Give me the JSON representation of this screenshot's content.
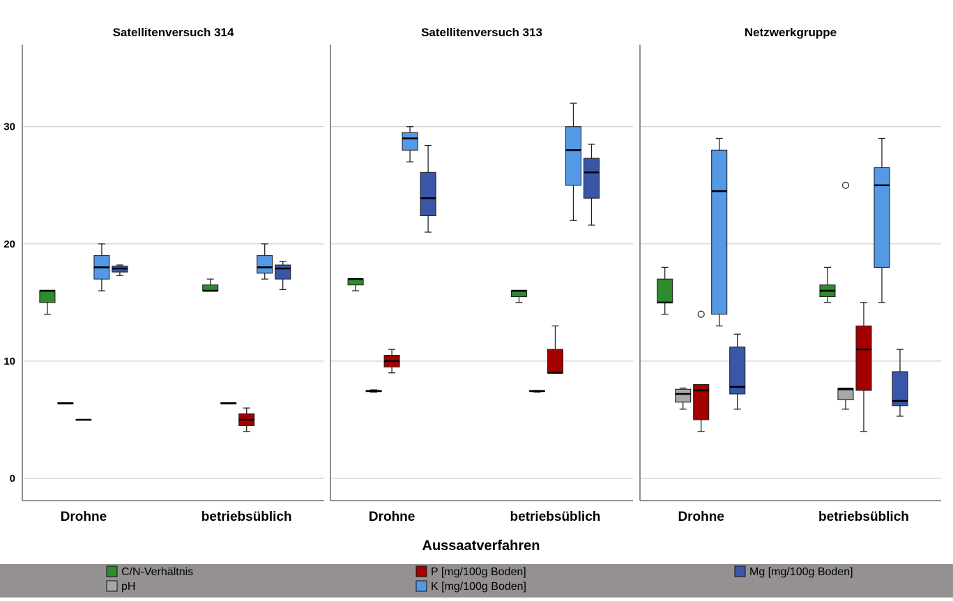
{
  "chart_data": {
    "type": "boxplot",
    "xlabel": "Aussaatverfahren",
    "ylim": [
      -1.9,
      37
    ],
    "yticks": [
      0,
      10,
      20,
      30
    ],
    "grid": true,
    "categories": [
      "Drohne",
      "betriebsüblich"
    ],
    "legend": {
      "placement": "bottom",
      "items": [
        {
          "key": "cn",
          "label": "C/N-Verhältnis",
          "color": "#2e8b2e"
        },
        {
          "key": "ph",
          "label": "pH",
          "color": "#a8a8a8"
        },
        {
          "key": "p",
          "label": "P [mg/100g Boden]",
          "color": "#a50000"
        },
        {
          "key": "k",
          "label": "K [mg/100g Boden]",
          "color": "#5599e6"
        },
        {
          "key": "mg",
          "label": "Mg [mg/100g Boden]",
          "color": "#3a56a8"
        }
      ]
    },
    "panels": [
      {
        "title": "Satellitenversuch 314",
        "groups": [
          {
            "category": "Drohne",
            "boxes": [
              {
                "series": "cn",
                "min": 14,
                "q1": 15,
                "median": 16,
                "q3": 16,
                "max": 16
              },
              {
                "series": "ph",
                "min": 6.35,
                "q1": 6.35,
                "median": 6.4,
                "q3": 6.45,
                "max": 6.45
              },
              {
                "series": "p",
                "min": 5,
                "q1": 5,
                "median": 5,
                "q3": 5,
                "max": 5
              },
              {
                "series": "k",
                "min": 16,
                "q1": 17,
                "median": 18,
                "q3": 19,
                "max": 20
              },
              {
                "series": "mg",
                "min": 17.3,
                "q1": 17.6,
                "median": 17.9,
                "q3": 18.1,
                "max": 18.2
              }
            ]
          },
          {
            "category": "betriebsüblich",
            "boxes": [
              {
                "series": "cn",
                "min": 16,
                "q1": 16,
                "median": 16,
                "q3": 16.5,
                "max": 17
              },
              {
                "series": "ph",
                "min": 6.35,
                "q1": 6.35,
                "median": 6.4,
                "q3": 6.45,
                "max": 6.45
              },
              {
                "series": "p",
                "min": 4,
                "q1": 4.5,
                "median": 5,
                "q3": 5.5,
                "max": 6
              },
              {
                "series": "k",
                "min": 17,
                "q1": 17.5,
                "median": 18,
                "q3": 19,
                "max": 20
              },
              {
                "series": "mg",
                "min": 16.1,
                "q1": 17,
                "median": 17.9,
                "q3": 18.2,
                "max": 18.5
              }
            ]
          }
        ]
      },
      {
        "title": "Satellitenversuch 313",
        "groups": [
          {
            "category": "Drohne",
            "boxes": [
              {
                "series": "cn",
                "min": 16,
                "q1": 16.5,
                "median": 17,
                "q3": 17,
                "max": 17
              },
              {
                "series": "ph",
                "min": 7.35,
                "q1": 7.4,
                "median": 7.45,
                "q3": 7.5,
                "max": 7.55
              },
              {
                "series": "p",
                "min": 9,
                "q1": 9.5,
                "median": 10,
                "q3": 10.5,
                "max": 11
              },
              {
                "series": "k",
                "min": 27,
                "q1": 28,
                "median": 29,
                "q3": 29.5,
                "max": 30
              },
              {
                "series": "mg",
                "min": 21,
                "q1": 22.4,
                "median": 23.9,
                "q3": 26.1,
                "max": 28.4
              }
            ]
          },
          {
            "category": "betriebsüblich",
            "boxes": [
              {
                "series": "cn",
                "min": 15,
                "q1": 15.5,
                "median": 16,
                "q3": 16,
                "max": 16
              },
              {
                "series": "ph",
                "min": 7.35,
                "q1": 7.4,
                "median": 7.45,
                "q3": 7.45,
                "max": 7.5
              },
              {
                "series": "p",
                "min": 9,
                "q1": 9,
                "median": 9,
                "q3": 11,
                "max": 13
              },
              {
                "series": "k",
                "min": 22,
                "q1": 25,
                "median": 28,
                "q3": 30,
                "max": 32
              },
              {
                "series": "mg",
                "min": 21.6,
                "q1": 23.9,
                "median": 26.1,
                "q3": 27.3,
                "max": 28.5
              }
            ]
          }
        ]
      },
      {
        "title": "Netzwerkgruppe",
        "groups": [
          {
            "category": "Drohne",
            "boxes": [
              {
                "series": "cn",
                "min": 14,
                "q1": 15,
                "median": 15,
                "q3": 17,
                "max": 18
              },
              {
                "series": "ph",
                "min": 5.9,
                "q1": 6.5,
                "median": 7.2,
                "q3": 7.6,
                "max": 7.7
              },
              {
                "series": "p",
                "min": 4,
                "q1": 5,
                "median": 7.5,
                "q3": 8,
                "max": 8
              },
              {
                "series": "k",
                "min": 13,
                "q1": 14,
                "median": 24.5,
                "q3": 28,
                "max": 29,
                "outliers": [
                  14
                ]
              },
              {
                "series": "mg",
                "min": 5.9,
                "q1": 7.2,
                "median": 7.8,
                "q3": 11.2,
                "max": 12.3
              }
            ]
          },
          {
            "category": "betriebsüblich",
            "boxes": [
              {
                "series": "cn",
                "min": 15,
                "q1": 15.5,
                "median": 16,
                "q3": 16.5,
                "max": 18
              },
              {
                "series": "ph",
                "min": 5.9,
                "q1": 6.7,
                "median": 7.6,
                "q3": 7.7,
                "max": 7.7
              },
              {
                "series": "p",
                "min": 4,
                "q1": 7.5,
                "median": 11,
                "q3": 13,
                "max": 15,
                "outliers": [
                  25
                ]
              },
              {
                "series": "k",
                "min": 15,
                "q1": 18,
                "median": 25,
                "q3": 26.5,
                "max": 29
              },
              {
                "series": "mg",
                "min": 5.3,
                "q1": 6.2,
                "median": 6.6,
                "q3": 9.1,
                "max": 11
              }
            ]
          }
        ]
      }
    ]
  }
}
